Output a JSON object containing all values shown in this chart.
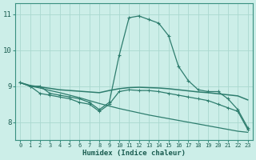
{
  "xlabel": "Humidex (Indice chaleur)",
  "bg_color": "#cceee8",
  "grid_color": "#aad8d0",
  "line_color": "#2e7d6e",
  "x_values": [
    0,
    1,
    2,
    3,
    4,
    5,
    6,
    7,
    8,
    9,
    10,
    11,
    12,
    13,
    14,
    15,
    16,
    17,
    18,
    19,
    20,
    21,
    22,
    23
  ],
  "line1_markers": [
    9.1,
    9.0,
    9.0,
    8.8,
    8.75,
    8.7,
    8.65,
    8.55,
    8.35,
    8.55,
    9.85,
    10.9,
    10.95,
    10.85,
    10.75,
    10.4,
    9.55,
    9.15,
    8.9,
    8.85,
    8.85,
    8.65,
    8.35,
    7.85
  ],
  "line2_smooth": [
    9.1,
    9.02,
    8.98,
    8.94,
    8.9,
    8.88,
    8.86,
    8.84,
    8.82,
    8.88,
    8.93,
    8.96,
    8.97,
    8.96,
    8.95,
    8.93,
    8.9,
    8.87,
    8.84,
    8.82,
    8.79,
    8.76,
    8.73,
    8.62
  ],
  "line3_wavy_markers": [
    9.1,
    9.0,
    8.8,
    8.75,
    8.7,
    8.65,
    8.55,
    8.5,
    8.3,
    8.5,
    8.85,
    8.9,
    8.88,
    8.88,
    8.85,
    8.8,
    8.75,
    8.7,
    8.65,
    8.6,
    8.5,
    8.4,
    8.3,
    7.8
  ],
  "line4_diagonal": [
    9.1,
    9.0,
    8.95,
    8.88,
    8.82,
    8.75,
    8.68,
    8.6,
    8.52,
    8.45,
    8.38,
    8.32,
    8.26,
    8.2,
    8.15,
    8.1,
    8.05,
    8.0,
    7.95,
    7.9,
    7.85,
    7.8,
    7.75,
    7.72
  ],
  "ylim": [
    7.5,
    11.3
  ],
  "yticks": [
    8,
    9,
    10,
    11
  ],
  "xticks": [
    0,
    1,
    2,
    3,
    4,
    5,
    6,
    7,
    8,
    9,
    10,
    11,
    12,
    13,
    14,
    15,
    16,
    17,
    18,
    19,
    20,
    21,
    22,
    23
  ]
}
